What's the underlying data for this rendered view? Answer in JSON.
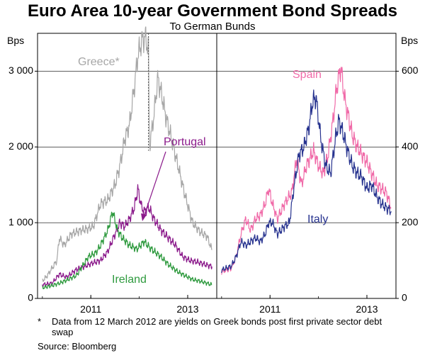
{
  "title": "Euro Area 10-year Government Bond Spreads",
  "subtitle": "To German Bunds",
  "footnote": {
    "marker": "*",
    "text": "Data from 12 March 2012 are yields on Greek bonds post first private sector debt swap"
  },
  "source": "Source: Bloomberg",
  "colors": {
    "greece": "#a6a6a6",
    "portugal": "#8b1a8b",
    "ireland": "#2e9a3e",
    "spain": "#f06aa8",
    "italy": "#27338f"
  },
  "chart_data": [
    {
      "type": "line",
      "panel": "left",
      "ylabel": "Bps",
      "ylim": [
        0,
        3500
      ],
      "yticks": [
        0,
        1000,
        2000,
        3000
      ],
      "ytick_labels": [
        "0",
        "1 000",
        "2 000",
        "3 000"
      ],
      "xlim": [
        2009.9,
        2013.6
      ],
      "xticks": [
        2011,
        2013
      ],
      "xtick_labels": [
        "2011",
        "2013"
      ],
      "annotations": [
        {
          "text": "Data break 12 March 2012 (dotted line)",
          "x": 2012.19,
          "y_from": 3500,
          "y_to": 1950,
          "label": ""
        }
      ],
      "series": [
        {
          "name": "Greece*",
          "color": "#a6a6a6",
          "x": [
            2010.0,
            2010.1,
            2010.2,
            2010.3,
            2010.35,
            2010.45,
            2010.6,
            2010.8,
            2010.95,
            2011.05,
            2011.2,
            2011.35,
            2011.5,
            2011.6,
            2011.7,
            2011.8,
            2011.9,
            2011.97,
            2012.05,
            2012.12,
            2012.19,
            2012.21,
            2012.3,
            2012.38,
            2012.46,
            2012.55,
            2012.65,
            2012.8,
            2012.95,
            2013.1,
            2013.25,
            2013.4,
            2013.5
          ],
          "values": [
            230,
            300,
            400,
            500,
            800,
            700,
            850,
            900,
            920,
            950,
            1250,
            1300,
            1500,
            1750,
            2100,
            2300,
            2800,
            3200,
            3400,
            3450,
            3300,
            2000,
            2400,
            2900,
            2700,
            2400,
            2150,
            1750,
            1350,
            1000,
            880,
            820,
            640
          ]
        },
        {
          "name": "Portugal",
          "color": "#8b1a8b",
          "x": [
            2010.0,
            2010.2,
            2010.35,
            2010.5,
            2010.7,
            2010.9,
            2011.05,
            2011.2,
            2011.35,
            2011.5,
            2011.6,
            2011.7,
            2011.8,
            2011.9,
            2011.97,
            2012.05,
            2012.1,
            2012.2,
            2012.3,
            2012.45,
            2012.6,
            2012.75,
            2012.9,
            2013.05,
            2013.2,
            2013.35,
            2013.5
          ],
          "values": [
            180,
            200,
            320,
            280,
            380,
            430,
            470,
            500,
            620,
            850,
            1000,
            950,
            1050,
            1200,
            1450,
            1200,
            1150,
            1200,
            1050,
            900,
            800,
            700,
            550,
            500,
            480,
            450,
            420
          ]
        },
        {
          "name": "Ireland",
          "color": "#2e9a3e",
          "x": [
            2010.0,
            2010.2,
            2010.35,
            2010.5,
            2010.7,
            2010.8,
            2010.95,
            2011.1,
            2011.2,
            2011.35,
            2011.45,
            2011.55,
            2011.65,
            2011.8,
            2011.95,
            2012.1,
            2012.25,
            2012.45,
            2012.6,
            2012.8,
            2012.95,
            2013.1,
            2013.3,
            2013.5
          ],
          "values": [
            140,
            170,
            200,
            240,
            300,
            400,
            550,
            600,
            700,
            900,
            1150,
            900,
            800,
            700,
            650,
            750,
            650,
            550,
            450,
            350,
            300,
            250,
            220,
            180
          ]
        }
      ]
    },
    {
      "type": "line",
      "panel": "right",
      "ylabel": "Bps",
      "ylim": [
        0,
        700
      ],
      "yticks": [
        0,
        200,
        400,
        600
      ],
      "ytick_labels": [
        "0",
        "200",
        "400",
        "600"
      ],
      "xlim": [
        2009.9,
        2013.6
      ],
      "xticks": [
        2011,
        2013
      ],
      "xtick_labels": [
        "2011",
        "2013"
      ],
      "series": [
        {
          "name": "Spain",
          "color": "#f06aa8",
          "x": [
            2010.0,
            2010.1,
            2010.2,
            2010.3,
            2010.4,
            2010.5,
            2010.6,
            2010.7,
            2010.8,
            2010.9,
            2010.97,
            2011.05,
            2011.15,
            2011.3,
            2011.45,
            2011.55,
            2011.65,
            2011.75,
            2011.9,
            2012.0,
            2012.1,
            2012.2,
            2012.3,
            2012.38,
            2012.46,
            2012.55,
            2012.62,
            2012.7,
            2012.8,
            2012.9,
            2013.0,
            2013.1,
            2013.2,
            2013.3,
            2013.4,
            2013.5
          ],
          "values": [
            70,
            75,
            80,
            110,
            170,
            210,
            180,
            210,
            220,
            250,
            290,
            250,
            210,
            250,
            280,
            370,
            300,
            350,
            390,
            350,
            330,
            380,
            470,
            560,
            610,
            520,
            480,
            430,
            400,
            380,
            360,
            330,
            300,
            290,
            280,
            240
          ]
        },
        {
          "name": "Italy",
          "color": "#27338f",
          "x": [
            2010.0,
            2010.1,
            2010.2,
            2010.3,
            2010.4,
            2010.5,
            2010.6,
            2010.7,
            2010.8,
            2010.9,
            2010.97,
            2011.05,
            2011.15,
            2011.3,
            2011.4,
            2011.5,
            2011.6,
            2011.7,
            2011.8,
            2011.88,
            2011.95,
            2012.05,
            2012.15,
            2012.25,
            2012.35,
            2012.42,
            2012.5,
            2012.6,
            2012.7,
            2012.8,
            2012.9,
            2013.0,
            2013.1,
            2013.2,
            2013.3,
            2013.4,
            2013.5
          ],
          "values": [
            75,
            80,
            85,
            110,
            150,
            140,
            150,
            160,
            150,
            170,
            200,
            200,
            170,
            190,
            200,
            300,
            380,
            400,
            450,
            520,
            530,
            420,
            350,
            330,
            420,
            470,
            440,
            390,
            350,
            330,
            320,
            290,
            300,
            270,
            250,
            240,
            230
          ]
        }
      ]
    }
  ]
}
